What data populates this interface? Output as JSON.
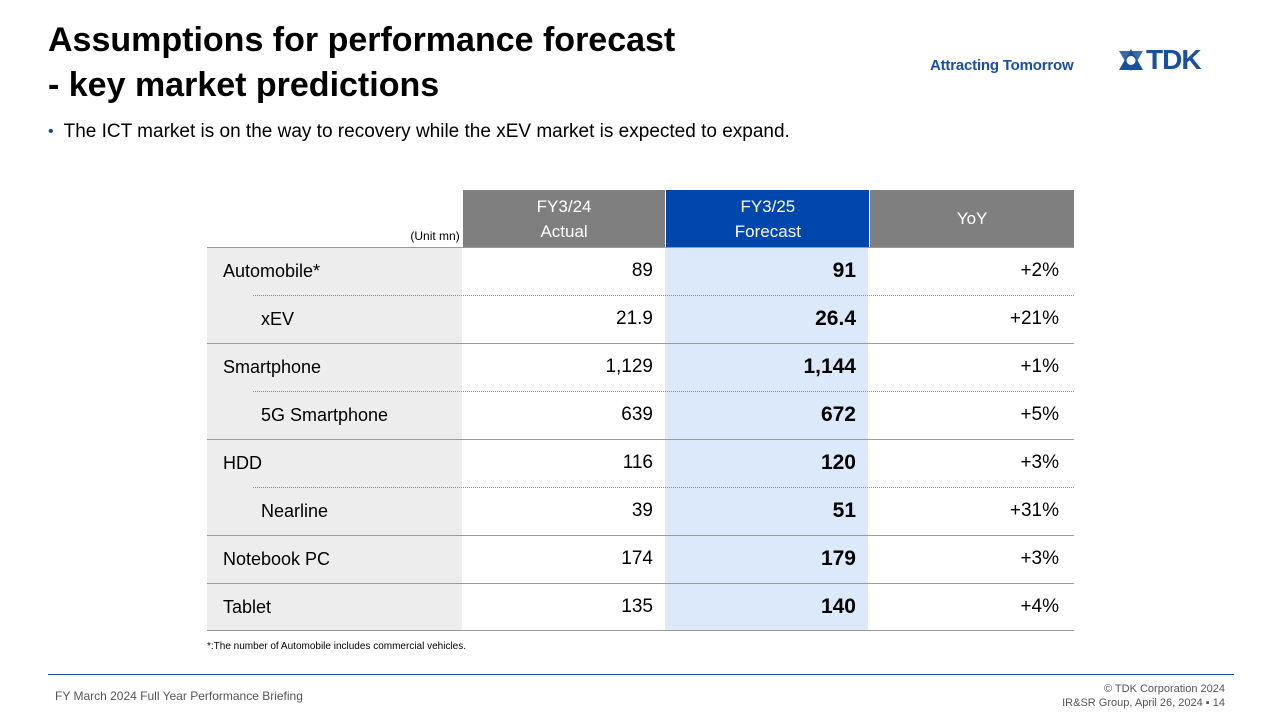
{
  "header": {
    "title_line1": "Assumptions for performance forecast",
    "title_line2": "- key market predictions",
    "tagline": "Attracting Tomorrow",
    "logo_text": "TDK"
  },
  "bullet": "The ICT market is on the way to recovery while the xEV market is expected to expand.",
  "table": {
    "unit_label": "(Unit mn)",
    "columns": [
      {
        "line1": "FY3/24",
        "line2": "Actual"
      },
      {
        "line1": "FY3/25",
        "line2": "Forecast"
      },
      {
        "line1": "YoY",
        "line2": ""
      }
    ],
    "rows": [
      {
        "label": "Automobile*",
        "actual": "89",
        "forecast": "91",
        "yoy": "+2%"
      },
      {
        "label": "xEV",
        "actual": "21.9",
        "forecast": "26.4",
        "yoy": "+21%"
      },
      {
        "label": "Smartphone",
        "actual": "1,129",
        "forecast": "1,144",
        "yoy": "+1%"
      },
      {
        "label": "5G Smartphone",
        "actual": "639",
        "forecast": "672",
        "yoy": "+5%"
      },
      {
        "label": "HDD",
        "actual": "116",
        "forecast": "120",
        "yoy": "+3%"
      },
      {
        "label": "Nearline",
        "actual": "39",
        "forecast": "51",
        "yoy": "+31%"
      },
      {
        "label": "Notebook PC",
        "actual": "174",
        "forecast": "179",
        "yoy": "+3%"
      },
      {
        "label": "Tablet",
        "actual": "135",
        "forecast": "140",
        "yoy": "+4%"
      }
    ],
    "footnote": "*:The number of Automobile includes commercial vehicles."
  },
  "footer": {
    "left": "FY March 2024 Full Year Performance Briefing",
    "copyright": "© TDK Corporation 2024",
    "page_info": "IR&SR Group, April 26, 2024 ▪ 14"
  },
  "colors": {
    "brand_blue": "#1a4fa0",
    "forecast_header": "#0046ad",
    "forecast_fill": "#dbe9fb",
    "gray_header": "#7f7f7f"
  }
}
